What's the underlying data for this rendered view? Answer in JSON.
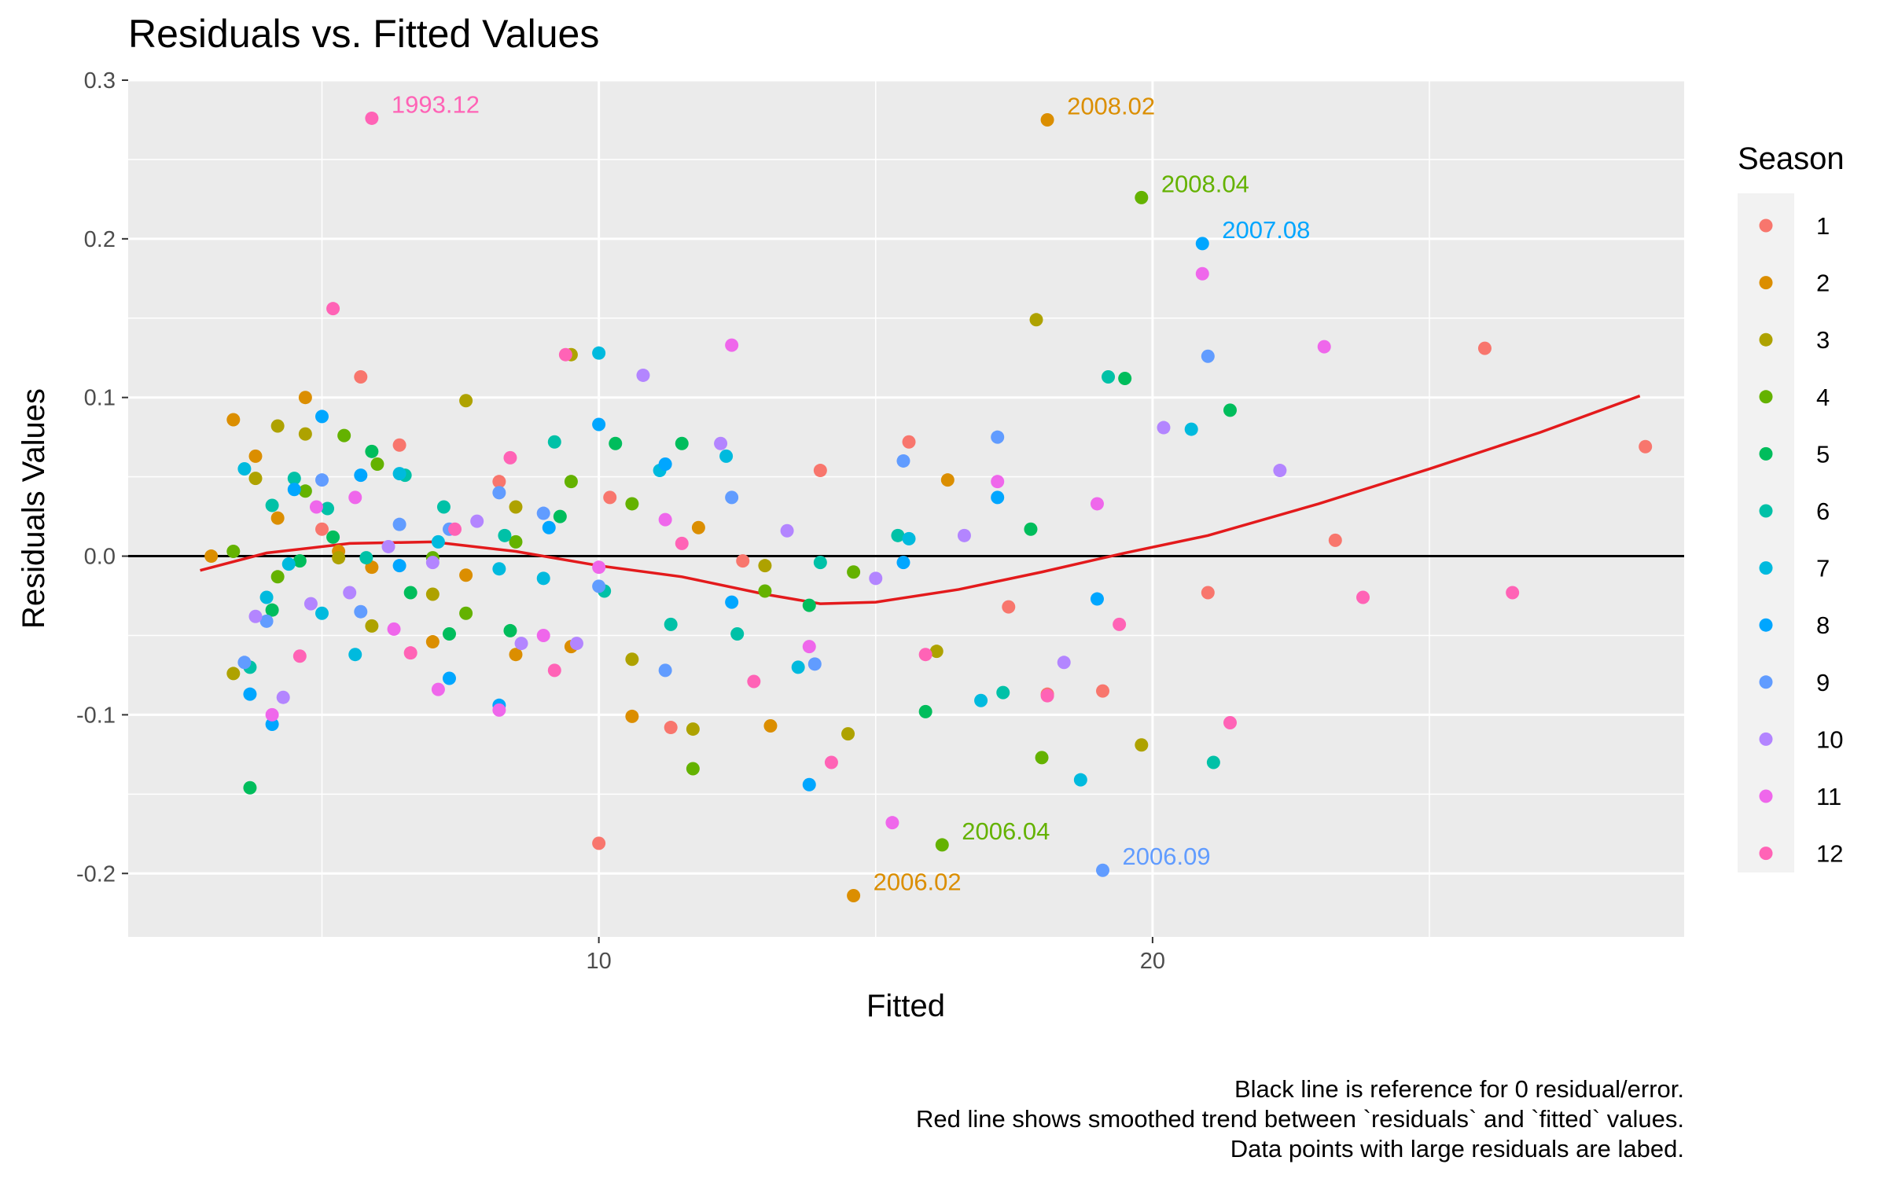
{
  "chart_data": {
    "type": "scatter",
    "title": "Residuals vs. Fitted Values",
    "xlabel": "Fitted",
    "ylabel": "Residuals Values",
    "xlim": [
      1.5,
      29.6
    ],
    "ylim": [
      -0.24,
      0.3
    ],
    "x_ticks": [
      10,
      20
    ],
    "x_tick_labels": [
      "10",
      "20"
    ],
    "y_ticks": [
      -0.2,
      -0.1,
      0.0,
      0.1,
      0.2,
      0.3
    ],
    "y_tick_labels": [
      "-0.2",
      "-0.1",
      "0.0",
      "0.1",
      "0.2",
      "0.3"
    ],
    "grid": true,
    "reference_line_y": 0,
    "legend": {
      "title": "Season",
      "position": "right",
      "items": [
        {
          "label": "1",
          "color": "#F8766D"
        },
        {
          "label": "2",
          "color": "#DB8E00"
        },
        {
          "label": "3",
          "color": "#AEA200"
        },
        {
          "label": "4",
          "color": "#64B200"
        },
        {
          "label": "5",
          "color": "#00BD5C"
        },
        {
          "label": "6",
          "color": "#00C1A7"
        },
        {
          "label": "7",
          "color": "#00BADE"
        },
        {
          "label": "8",
          "color": "#00A6FF"
        },
        {
          "label": "9",
          "color": "#619CFF"
        },
        {
          "label": "10",
          "color": "#B385FF"
        },
        {
          "label": "11",
          "color": "#EF67EB"
        },
        {
          "label": "12",
          "color": "#FF63B6"
        }
      ]
    },
    "smooth_line": {
      "color": "#E31A1C",
      "x": [
        2.8,
        4.0,
        5.5,
        7.0,
        8.5,
        10.0,
        11.5,
        13.0,
        14.0,
        15.0,
        16.5,
        18.0,
        19.5,
        21.0,
        23.0,
        25.0,
        27.0,
        28.8
      ],
      "y": [
        -0.009,
        0.002,
        0.008,
        0.009,
        0.003,
        -0.006,
        -0.013,
        -0.024,
        -0.03,
        -0.029,
        -0.021,
        -0.01,
        0.002,
        0.013,
        0.033,
        0.055,
        0.078,
        0.101
      ]
    },
    "series": [
      {
        "name": "1",
        "points": [
          [
            5.0,
            0.017
          ],
          [
            5.7,
            0.113
          ],
          [
            6.4,
            0.07
          ],
          [
            8.2,
            0.047
          ],
          [
            10.0,
            -0.181
          ],
          [
            10.2,
            0.037
          ],
          [
            11.3,
            -0.108
          ],
          [
            12.6,
            -0.003
          ],
          [
            14.0,
            0.054
          ],
          [
            15.6,
            0.072
          ],
          [
            17.4,
            -0.032
          ],
          [
            18.1,
            -0.087
          ],
          [
            19.1,
            -0.085
          ],
          [
            21.0,
            -0.023
          ],
          [
            23.3,
            0.01
          ],
          [
            26.0,
            0.131
          ],
          [
            28.9,
            0.069
          ]
        ]
      },
      {
        "name": "2",
        "points": [
          [
            3.0,
            0.0
          ],
          [
            3.4,
            0.086
          ],
          [
            3.8,
            0.063
          ],
          [
            4.2,
            0.024
          ],
          [
            4.7,
            0.1
          ],
          [
            5.3,
            0.003
          ],
          [
            5.9,
            -0.007
          ],
          [
            7.0,
            -0.054
          ],
          [
            7.6,
            -0.012
          ],
          [
            8.5,
            -0.062
          ],
          [
            9.5,
            -0.057
          ],
          [
            10.6,
            -0.101
          ],
          [
            11.8,
            0.018
          ],
          [
            13.1,
            -0.107
          ],
          [
            14.6,
            -0.214
          ],
          [
            16.3,
            0.048
          ],
          [
            18.1,
            0.275
          ]
        ]
      },
      {
        "name": "3",
        "points": [
          [
            3.4,
            -0.074
          ],
          [
            3.8,
            0.049
          ],
          [
            4.2,
            0.082
          ],
          [
            4.7,
            0.077
          ],
          [
            5.3,
            -0.001
          ],
          [
            5.9,
            -0.044
          ],
          [
            7.0,
            -0.024
          ],
          [
            7.6,
            0.098
          ],
          [
            8.5,
            0.031
          ],
          [
            9.5,
            0.127
          ],
          [
            10.6,
            -0.065
          ],
          [
            11.7,
            -0.109
          ],
          [
            13.0,
            -0.006
          ],
          [
            14.5,
            -0.112
          ],
          [
            16.1,
            -0.06
          ],
          [
            17.9,
            0.149
          ],
          [
            19.8,
            -0.119
          ]
        ]
      },
      {
        "name": "4",
        "points": [
          [
            3.4,
            0.003
          ],
          [
            4.2,
            -0.013
          ],
          [
            4.7,
            0.041
          ],
          [
            5.4,
            0.076
          ],
          [
            6.0,
            0.058
          ],
          [
            7.0,
            -0.001
          ],
          [
            7.6,
            -0.036
          ],
          [
            8.5,
            0.009
          ],
          [
            9.5,
            0.047
          ],
          [
            10.6,
            0.033
          ],
          [
            11.7,
            -0.134
          ],
          [
            13.0,
            -0.022
          ],
          [
            14.6,
            -0.01
          ],
          [
            16.2,
            -0.182
          ],
          [
            18.0,
            -0.127
          ],
          [
            19.8,
            0.226
          ]
        ]
      },
      {
        "name": "5",
        "points": [
          [
            3.7,
            -0.146
          ],
          [
            4.1,
            -0.034
          ],
          [
            4.6,
            -0.003
          ],
          [
            5.2,
            0.012
          ],
          [
            5.9,
            0.066
          ],
          [
            6.6,
            -0.023
          ],
          [
            7.3,
            -0.049
          ],
          [
            8.4,
            -0.047
          ],
          [
            9.3,
            0.025
          ],
          [
            10.3,
            0.071
          ],
          [
            11.5,
            0.071
          ],
          [
            13.8,
            -0.031
          ],
          [
            15.9,
            -0.098
          ],
          [
            17.8,
            0.017
          ],
          [
            19.5,
            0.112
          ],
          [
            21.4,
            0.092
          ]
        ]
      },
      {
        "name": "6",
        "points": [
          [
            3.7,
            -0.07
          ],
          [
            4.1,
            0.032
          ],
          [
            4.5,
            0.049
          ],
          [
            5.1,
            0.03
          ],
          [
            5.8,
            -0.001
          ],
          [
            6.5,
            0.051
          ],
          [
            7.2,
            0.031
          ],
          [
            8.3,
            0.013
          ],
          [
            9.2,
            0.072
          ],
          [
            10.1,
            -0.022
          ],
          [
            11.3,
            -0.043
          ],
          [
            12.5,
            -0.049
          ],
          [
            14.0,
            -0.004
          ],
          [
            15.4,
            0.013
          ],
          [
            17.3,
            -0.086
          ],
          [
            19.2,
            0.113
          ],
          [
            21.1,
            -0.13
          ]
        ]
      },
      {
        "name": "7",
        "points": [
          [
            3.6,
            0.055
          ],
          [
            4.0,
            -0.026
          ],
          [
            4.4,
            -0.005
          ],
          [
            5.0,
            -0.036
          ],
          [
            5.6,
            -0.062
          ],
          [
            6.4,
            0.052
          ],
          [
            7.1,
            0.009
          ],
          [
            8.2,
            -0.008
          ],
          [
            9.0,
            -0.014
          ],
          [
            10.0,
            0.128
          ],
          [
            11.1,
            0.054
          ],
          [
            12.3,
            0.063
          ],
          [
            13.6,
            -0.07
          ],
          [
            15.6,
            0.011
          ],
          [
            16.9,
            -0.091
          ],
          [
            18.7,
            -0.141
          ],
          [
            20.7,
            0.08
          ]
        ]
      },
      {
        "name": "8",
        "points": [
          [
            3.7,
            -0.087
          ],
          [
            4.1,
            -0.106
          ],
          [
            4.5,
            0.042
          ],
          [
            5.0,
            0.088
          ],
          [
            5.7,
            0.051
          ],
          [
            6.4,
            -0.006
          ],
          [
            7.3,
            -0.077
          ],
          [
            8.2,
            -0.094
          ],
          [
            9.1,
            0.018
          ],
          [
            10.0,
            0.083
          ],
          [
            11.2,
            0.058
          ],
          [
            12.4,
            -0.029
          ],
          [
            13.8,
            -0.144
          ],
          [
            15.5,
            -0.004
          ],
          [
            17.2,
            0.037
          ],
          [
            19.0,
            -0.027
          ],
          [
            20.9,
            0.197
          ]
        ]
      },
      {
        "name": "9",
        "points": [
          [
            3.6,
            -0.067
          ],
          [
            4.0,
            -0.041
          ],
          [
            5.0,
            0.048
          ],
          [
            5.7,
            -0.035
          ],
          [
            6.4,
            0.02
          ],
          [
            7.3,
            0.017
          ],
          [
            8.2,
            0.04
          ],
          [
            9.0,
            0.027
          ],
          [
            10.0,
            -0.019
          ],
          [
            11.2,
            -0.072
          ],
          [
            12.4,
            0.037
          ],
          [
            13.9,
            -0.068
          ],
          [
            15.5,
            0.06
          ],
          [
            17.2,
            0.075
          ],
          [
            19.1,
            -0.198
          ],
          [
            21.0,
            0.126
          ]
        ]
      },
      {
        "name": "10",
        "points": [
          [
            3.8,
            -0.038
          ],
          [
            4.3,
            -0.089
          ],
          [
            4.8,
            -0.03
          ],
          [
            5.5,
            -0.023
          ],
          [
            6.2,
            0.006
          ],
          [
            7.0,
            -0.004
          ],
          [
            7.8,
            0.022
          ],
          [
            8.6,
            -0.055
          ],
          [
            9.6,
            -0.055
          ],
          [
            10.8,
            0.114
          ],
          [
            12.2,
            0.071
          ],
          [
            13.4,
            0.016
          ],
          [
            15.0,
            -0.014
          ],
          [
            16.6,
            0.013
          ],
          [
            18.4,
            -0.067
          ],
          [
            20.2,
            0.081
          ],
          [
            22.3,
            0.054
          ]
        ]
      },
      {
        "name": "11",
        "points": [
          [
            4.1,
            -0.1
          ],
          [
            4.9,
            0.031
          ],
          [
            5.6,
            0.037
          ],
          [
            6.3,
            -0.046
          ],
          [
            7.1,
            -0.084
          ],
          [
            8.2,
            -0.097
          ],
          [
            9.0,
            -0.05
          ],
          [
            10.0,
            -0.007
          ],
          [
            11.2,
            0.023
          ],
          [
            12.4,
            0.133
          ],
          [
            13.8,
            -0.057
          ],
          [
            15.3,
            -0.168
          ],
          [
            17.2,
            0.047
          ],
          [
            19.0,
            0.033
          ],
          [
            20.9,
            0.178
          ],
          [
            23.1,
            0.132
          ]
        ]
      },
      {
        "name": "12",
        "points": [
          [
            4.6,
            -0.063
          ],
          [
            5.2,
            0.156
          ],
          [
            5.9,
            0.276
          ],
          [
            6.6,
            -0.061
          ],
          [
            7.4,
            0.017
          ],
          [
            8.4,
            0.062
          ],
          [
            9.2,
            -0.072
          ],
          [
            9.4,
            0.127
          ],
          [
            11.5,
            0.008
          ],
          [
            12.8,
            -0.079
          ],
          [
            14.2,
            -0.13
          ],
          [
            15.9,
            -0.062
          ],
          [
            18.1,
            -0.088
          ],
          [
            19.4,
            -0.043
          ],
          [
            21.4,
            -0.105
          ],
          [
            23.8,
            -0.026
          ],
          [
            26.5,
            -0.023
          ]
        ]
      }
    ],
    "annotations": [
      {
        "text": "1993.12",
        "x": 5.9,
        "y": 0.276,
        "season": "12"
      },
      {
        "text": "2008.02",
        "x": 18.1,
        "y": 0.275,
        "season": "2"
      },
      {
        "text": "2008.04",
        "x": 19.8,
        "y": 0.226,
        "season": "4"
      },
      {
        "text": "2007.08",
        "x": 20.9,
        "y": 0.197,
        "season": "8"
      },
      {
        "text": "2006.04",
        "x": 16.2,
        "y": -0.182,
        "season": "4"
      },
      {
        "text": "2006.09",
        "x": 19.1,
        "y": -0.198,
        "season": "9"
      },
      {
        "text": "2006.02",
        "x": 14.6,
        "y": -0.214,
        "season": "2"
      }
    ],
    "caption": [
      "Black line is reference for 0 residual/error.",
      "Red line shows smoothed trend between `residuals` and `fitted` values.",
      "Data points with large residuals are labed."
    ]
  }
}
